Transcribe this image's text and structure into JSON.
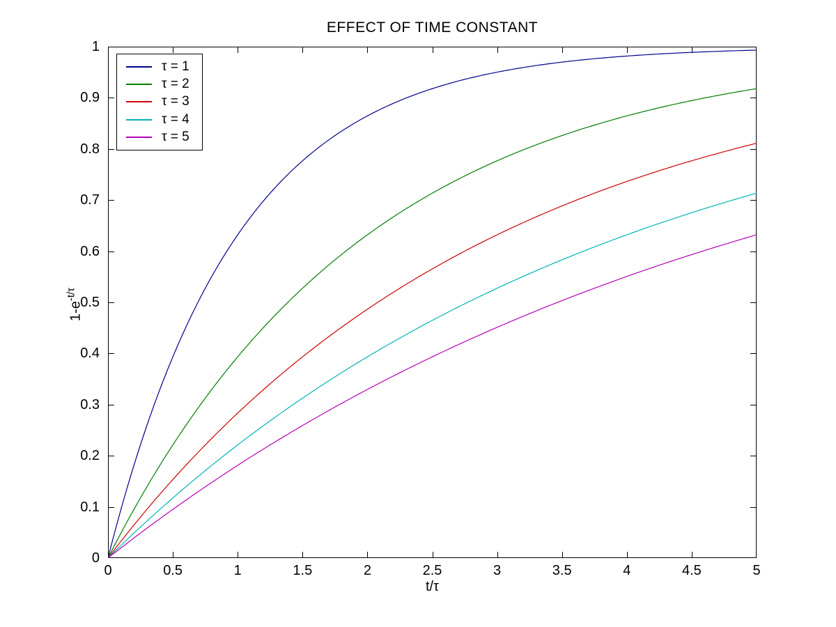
{
  "figure": {
    "title": "EFFECT OF TIME CONSTANT",
    "xlabel": "t/τ",
    "ylabel_base": "1-e",
    "ylabel_sup": "-t/τ",
    "background": "#ffffff",
    "axis_color": "#000000"
  },
  "chart_data": {
    "type": "line",
    "title": "EFFECT OF TIME CONSTANT",
    "xlabel": "t/τ",
    "ylabel": "1-e^{-t/τ}",
    "xlim": [
      0,
      5
    ],
    "ylim": [
      0,
      1
    ],
    "x_ticks": [
      "0",
      "0.5",
      "1",
      "1.5",
      "2",
      "2.5",
      "3",
      "3.5",
      "4",
      "4.5",
      "5"
    ],
    "y_ticks": [
      "0",
      "0.1",
      "0.2",
      "0.3",
      "0.4",
      "0.5",
      "0.6",
      "0.7",
      "0.8",
      "0.9",
      "1"
    ],
    "grid": false,
    "box": true,
    "legend_position": "top-left",
    "formula": "y = 1 - exp(-x/tau)",
    "x": [
      0,
      0.25,
      0.5,
      0.75,
      1,
      1.25,
      1.5,
      1.75,
      2,
      2.25,
      2.5,
      2.75,
      3,
      3.25,
      3.5,
      3.75,
      4,
      4.25,
      4.5,
      4.75,
      5
    ],
    "series": [
      {
        "name": "τ = 1",
        "tau": 1,
        "color": "#00008B",
        "values": [
          0,
          0.2212,
          0.3935,
          0.5276,
          0.6321,
          0.7135,
          0.7769,
          0.8262,
          0.8647,
          0.8946,
          0.9179,
          0.9361,
          0.9502,
          0.9612,
          0.9698,
          0.9765,
          0.9817,
          0.9857,
          0.9889,
          0.9913,
          0.9933
        ]
      },
      {
        "name": "τ = 2",
        "tau": 2,
        "color": "#007D00",
        "values": [
          0,
          0.1175,
          0.2212,
          0.3127,
          0.3935,
          0.4647,
          0.5276,
          0.5831,
          0.6321,
          0.6753,
          0.7135,
          0.7471,
          0.7769,
          0.803,
          0.8262,
          0.8466,
          0.8647,
          0.8806,
          0.8946,
          0.907,
          0.9179
        ]
      },
      {
        "name": "τ = 3",
        "tau": 3,
        "color": "#CC0000",
        "values": [
          0,
          0.08,
          0.1535,
          0.2212,
          0.2835,
          0.3408,
          0.3935,
          0.442,
          0.4866,
          0.5276,
          0.5654,
          0.6001,
          0.6321,
          0.6616,
          0.6887,
          0.7135,
          0.7364,
          0.7575,
          0.7769,
          0.7946,
          0.8111
        ]
      },
      {
        "name": "τ = 4",
        "tau": 4,
        "color": "#00B4B4",
        "values": [
          0,
          0.0606,
          0.1175,
          0.171,
          0.2212,
          0.2684,
          0.3127,
          0.3542,
          0.3935,
          0.4302,
          0.4647,
          0.4972,
          0.5276,
          0.5563,
          0.5831,
          0.6084,
          0.6321,
          0.6544,
          0.6753,
          0.6951,
          0.7135
        ]
      },
      {
        "name": "τ = 5",
        "tau": 5,
        "color": "#B400B4",
        "values": [
          0,
          0.0488,
          0.0952,
          0.1393,
          0.1813,
          0.2212,
          0.2592,
          0.2953,
          0.3297,
          0.3624,
          0.3935,
          0.4231,
          0.4512,
          0.478,
          0.5034,
          0.5276,
          0.5507,
          0.5726,
          0.5934,
          0.6133,
          0.6321
        ]
      }
    ]
  }
}
